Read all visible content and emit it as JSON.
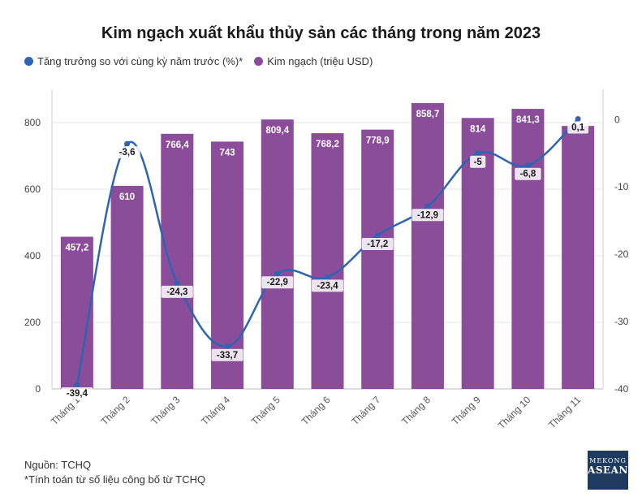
{
  "title": "Kim ngạch xuất khẩu thủy sản các tháng trong năm 2023",
  "legend": {
    "growth_label": "Tăng trưởng so với cùng kỳ năm trước (%)*",
    "value_label": "Kim ngạch (triệu USD)"
  },
  "colors": {
    "bar": "#8b4c9a",
    "line": "#2f64b0",
    "grid": "#e6e6e6"
  },
  "chart_data": {
    "type": "bar",
    "categories": [
      "Tháng 1",
      "Tháng 2",
      "Tháng 3",
      "Tháng 4",
      "Tháng 5",
      "Tháng 6",
      "Tháng 7",
      "Tháng 8",
      "Tháng 9",
      "Tháng 10",
      "Tháng 11"
    ],
    "series": [
      {
        "name": "Kim ngạch (triệu USD)",
        "type": "bar",
        "axis": "left",
        "values": [
          457.2,
          610,
          766.4,
          743,
          809.4,
          768.2,
          778.9,
          858.7,
          814,
          841.3,
          790
        ],
        "labels": [
          "457,2",
          "610",
          "766,4",
          "743",
          "809,4",
          "768,2",
          "778,9",
          "858,7",
          "814",
          "841,3",
          ""
        ]
      },
      {
        "name": "Tăng trưởng so với cùng kỳ năm trước (%)*",
        "type": "line",
        "axis": "right",
        "values": [
          -39.4,
          -3.6,
          -24.3,
          -33.7,
          -22.9,
          -23.4,
          -17.2,
          -12.9,
          -5,
          -6.8,
          0.1
        ],
        "labels": [
          "-39,4",
          "-3,6",
          "-24,3",
          "-33,7",
          "-22,9",
          "-23,4",
          "-17,2",
          "-12,9",
          "-5",
          "-6,8",
          "0,1"
        ]
      }
    ],
    "ylim_left": [
      0,
      900
    ],
    "yticks_left": [
      0,
      200,
      400,
      600,
      800
    ],
    "ylim_right": [
      -40,
      4.5
    ],
    "yticks_right": [
      0,
      -10,
      -20,
      -30,
      -40
    ],
    "grid": true,
    "legend_position": "top-left"
  },
  "footer": {
    "source": "Nguồn: TCHQ",
    "note": "*Tính toán từ số liệu công bố từ TCHQ"
  },
  "logo": {
    "line1": "MEKONG",
    "line2": "ASEAN"
  }
}
